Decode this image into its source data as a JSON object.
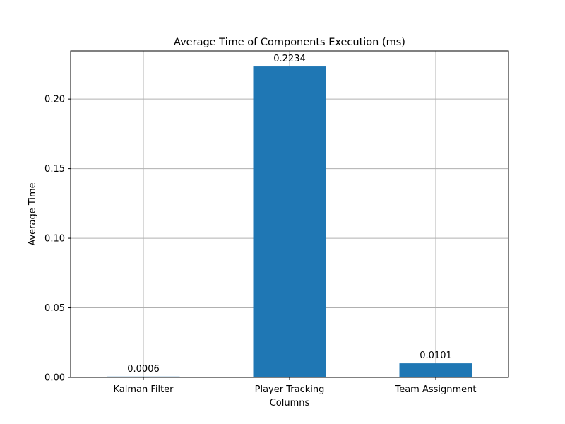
{
  "chart_data": {
    "type": "bar",
    "title": "Average Time of Components Execution (ms)",
    "xlabel": "Columns",
    "ylabel": "Average Time",
    "categories": [
      "Kalman Filter",
      "Player Tracking",
      "Team Assignment"
    ],
    "values": [
      0.0006,
      0.2234,
      0.0101
    ],
    "data_labels": [
      "0.0006",
      "0.2234",
      "0.0101"
    ],
    "ylim": [
      0,
      0.2346
    ],
    "yticks": [
      0.0,
      0.05,
      0.1,
      0.15,
      0.2
    ],
    "ytick_labels": [
      "0.00",
      "0.05",
      "0.10",
      "0.15",
      "0.20"
    ],
    "grid": true,
    "bar_color": "#1f77b4"
  }
}
